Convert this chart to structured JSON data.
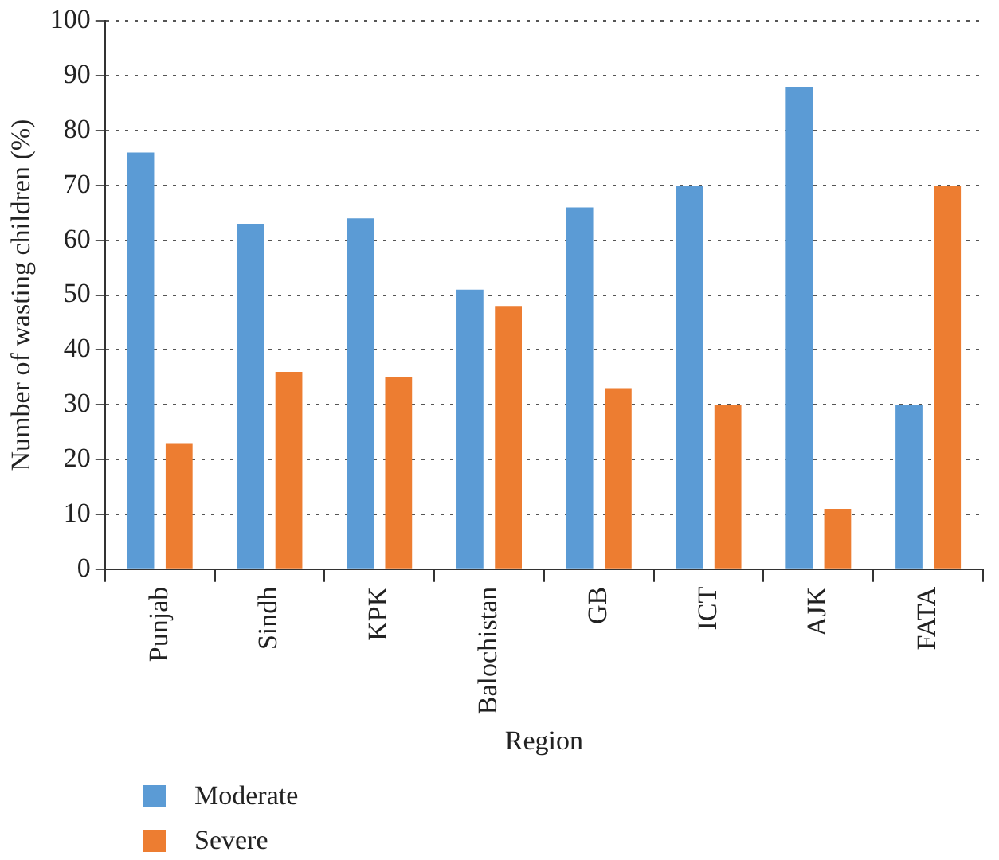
{
  "chart_data": {
    "type": "bar",
    "xlabel": "Region",
    "ylabel": "Number of wasting children (%)",
    "categories": [
      "Punjab",
      "Sindh",
      "KPK",
      "Balochistan",
      "GB",
      "ICT",
      "AJK",
      "FATA"
    ],
    "series": [
      {
        "name": "Moderate",
        "color": "#5b9bd5",
        "values": [
          76,
          63,
          64,
          51,
          66,
          70,
          88,
          30
        ]
      },
      {
        "name": "Severe",
        "color": "#ed7d31",
        "values": [
          23,
          36,
          35,
          48,
          33,
          30,
          11,
          70
        ]
      }
    ],
    "ylim": [
      0,
      100
    ],
    "yticks": [
      0,
      10,
      20,
      30,
      40,
      50,
      60,
      70,
      80,
      90,
      100
    ],
    "grid": "y",
    "legend": "bottom left"
  }
}
